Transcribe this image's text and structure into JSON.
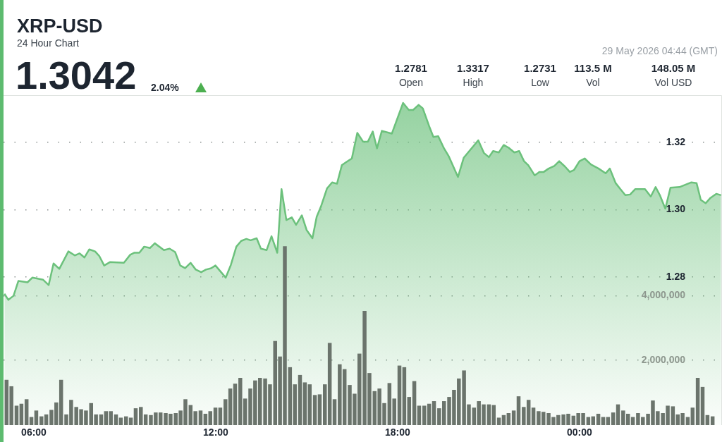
{
  "chart_data": {
    "type": "area",
    "title": "XRP-USD",
    "subtitle": "24 Hour Chart",
    "annotations": [
      "1.3042",
      "2.04%",
      "29 May 2026 04:44 (GMT)",
      "1.2781",
      "Open",
      "1.3317",
      "High",
      "1.2731",
      "Low",
      "113.5 M",
      "Vol",
      "148.05 M",
      "Vol USD"
    ],
    "xlim": [
      5.0,
      28.7
    ],
    "xticks": [
      {
        "value": 6,
        "label": "06:00"
      },
      {
        "value": 12,
        "label": "12:00"
      },
      {
        "value": 18,
        "label": "18:00"
      },
      {
        "value": 24,
        "label": "00:00"
      }
    ],
    "ylim": [
      1.236,
      1.334
    ],
    "yticks": [
      1.28,
      {
        "value": 1.3,
        "label": "1.30"
      },
      1.32
    ],
    "y2lim": [
      0,
      10200000
    ],
    "y2ticks": [
      {
        "value": 2000000,
        "label": "2,000,000"
      },
      {
        "value": 4000000,
        "label": "4,000,000"
      }
    ],
    "grid": "y",
    "legend": false,
    "series": [
      {
        "color": "#6cc17c",
        "x": [
          5.03,
          5.16,
          5.33,
          5.49,
          5.79,
          5.95,
          6.3,
          6.49,
          6.65,
          6.84,
          7.14,
          7.35,
          7.51,
          7.67,
          7.83,
          8.02,
          8.16,
          8.32,
          8.51,
          8.97,
          9.18,
          9.32,
          9.48,
          9.64,
          9.83,
          9.99,
          10.29,
          10.48,
          10.66,
          10.83,
          10.99,
          11.17,
          11.34,
          11.52,
          11.68,
          11.85,
          11.99,
          12.33,
          12.5,
          12.68,
          12.84,
          13.01,
          13.15,
          13.35,
          13.49,
          13.68,
          13.84,
          14.03,
          14.17,
          14.33,
          14.51,
          14.65,
          14.84,
          15.0,
          15.19,
          15.33,
          15.47,
          15.67,
          15.84,
          16.0,
          16.16,
          16.32,
          16.49,
          16.67,
          16.86,
          17.02,
          17.18,
          17.32,
          17.48,
          17.81,
          18.18,
          18.37,
          18.51,
          18.69,
          18.83,
          19.04,
          19.18,
          19.34,
          19.53,
          19.69,
          19.99,
          20.18,
          20.66,
          20.85,
          21.01,
          21.15,
          21.34,
          21.5,
          21.66,
          21.85,
          22.01,
          22.17,
          22.31,
          22.52,
          22.68,
          22.82,
          22.98,
          23.17,
          23.33,
          23.52,
          23.68,
          23.82,
          24.0,
          24.17,
          24.38,
          24.63,
          24.86,
          25.0,
          25.19,
          25.33,
          25.51,
          25.67,
          25.84,
          26.16,
          26.35,
          26.51,
          26.65,
          26.83,
          27.0,
          27.3,
          27.69,
          27.86,
          28.0,
          28.16,
          28.32,
          28.51,
          28.67
        ],
        "values": [
          1.275,
          1.2732,
          1.2744,
          1.2788,
          1.2784,
          1.2798,
          1.2792,
          1.2776,
          1.284,
          1.2824,
          1.2876,
          1.2864,
          1.287,
          1.2858,
          1.2882,
          1.2876,
          1.2862,
          1.2834,
          1.2844,
          1.2842,
          1.2866,
          1.2872,
          1.2872,
          1.289,
          1.2886,
          1.29,
          1.288,
          1.2884,
          1.2874,
          1.2834,
          1.2826,
          1.2842,
          1.2822,
          1.2814,
          1.2822,
          1.2826,
          1.2834,
          1.2798,
          1.2836,
          1.289,
          1.2907,
          1.2913,
          1.2909,
          1.2915,
          1.2884,
          1.288,
          1.2921,
          1.2872,
          1.3061,
          1.2969,
          1.2977,
          1.2955,
          1.2983,
          1.2939,
          1.2915,
          1.2979,
          1.3009,
          1.3063,
          1.3081,
          1.3077,
          1.3132,
          1.3142,
          1.3152,
          1.3228,
          1.3202,
          1.3202,
          1.3232,
          1.3182,
          1.3234,
          1.3226,
          1.3317,
          1.3296,
          1.3296,
          1.3311,
          1.3301,
          1.3248,
          1.3216,
          1.3218,
          1.3182,
          1.3158,
          1.3097,
          1.3154,
          1.3206,
          1.3168,
          1.3156,
          1.3174,
          1.317,
          1.3192,
          1.3184,
          1.317,
          1.3174,
          1.3144,
          1.3132,
          1.3102,
          1.3112,
          1.3112,
          1.3122,
          1.313,
          1.3144,
          1.3128,
          1.3112,
          1.3118,
          1.3144,
          1.3152,
          1.3134,
          1.3122,
          1.3108,
          1.3122,
          1.3079,
          1.3063,
          1.3043,
          1.3045,
          1.3061,
          1.3061,
          1.3039,
          1.3067,
          1.3043,
          1.3003,
          1.3065,
          1.3067,
          1.3081,
          1.3079,
          1.3029,
          1.3019,
          1.3035,
          1.3047,
          1.3043
        ]
      },
      {
        "type": "bar",
        "axis": "y2",
        "color": "#6b746c",
        "x": [
          5.1,
          5.26,
          5.43,
          5.59,
          5.76,
          5.92,
          6.08,
          6.25,
          6.41,
          6.58,
          6.74,
          6.9,
          7.07,
          7.23,
          7.4,
          7.56,
          7.72,
          7.89,
          8.05,
          8.22,
          8.38,
          8.54,
          8.71,
          8.87,
          9.04,
          9.2,
          9.36,
          9.53,
          9.69,
          9.86,
          10.02,
          10.18,
          10.35,
          10.51,
          10.68,
          10.84,
          11.0,
          11.17,
          11.33,
          11.5,
          11.66,
          11.82,
          11.99,
          12.15,
          12.32,
          12.48,
          12.64,
          12.81,
          12.97,
          13.14,
          13.3,
          13.46,
          13.63,
          13.79,
          13.96,
          14.12,
          14.28,
          14.45,
          14.61,
          14.78,
          14.94,
          15.1,
          15.27,
          15.43,
          15.6,
          15.76,
          15.92,
          16.09,
          16.25,
          16.42,
          16.58,
          16.74,
          16.91,
          17.07,
          17.24,
          17.4,
          17.56,
          17.73,
          17.89,
          18.06,
          18.22,
          18.38,
          18.55,
          18.71,
          18.88,
          19.04,
          19.2,
          19.37,
          19.53,
          19.7,
          19.86,
          20.02,
          20.19,
          20.35,
          20.52,
          20.68,
          20.84,
          21.01,
          21.17,
          21.34,
          21.5,
          21.66,
          21.83,
          21.99,
          22.16,
          22.32,
          22.48,
          22.65,
          22.81,
          22.98,
          23.14,
          23.3,
          23.47,
          23.63,
          23.8,
          23.96,
          24.12,
          24.29,
          24.45,
          24.62,
          24.78,
          24.94,
          25.11,
          25.27,
          25.44,
          25.6,
          25.76,
          25.93,
          26.09,
          26.26,
          26.42,
          26.58,
          26.75,
          26.91,
          27.08,
          27.24,
          27.4,
          27.57,
          27.73,
          27.9,
          28.06,
          28.22,
          28.39
        ],
        "values": [
          1400000,
          1200000,
          600000,
          660000,
          800000,
          250000,
          450000,
          270000,
          330000,
          470000,
          700000,
          1400000,
          330000,
          780000,
          560000,
          490000,
          450000,
          680000,
          330000,
          330000,
          430000,
          430000,
          330000,
          230000,
          270000,
          230000,
          520000,
          560000,
          330000,
          310000,
          390000,
          390000,
          370000,
          350000,
          370000,
          450000,
          800000,
          620000,
          430000,
          450000,
          350000,
          430000,
          540000,
          540000,
          800000,
          1130000,
          1280000,
          1460000,
          820000,
          1130000,
          1380000,
          1460000,
          1440000,
          1260000,
          2600000,
          2120000,
          5530000,
          1790000,
          1260000,
          1550000,
          1320000,
          1260000,
          930000,
          950000,
          1260000,
          2540000,
          800000,
          1880000,
          1730000,
          1240000,
          970000,
          2210000,
          3530000,
          1610000,
          1050000,
          1130000,
          680000,
          1300000,
          820000,
          1840000,
          1790000,
          870000,
          1360000,
          600000,
          600000,
          660000,
          740000,
          520000,
          740000,
          870000,
          1090000,
          1440000,
          1690000,
          640000,
          540000,
          740000,
          640000,
          640000,
          620000,
          230000,
          310000,
          370000,
          450000,
          890000,
          560000,
          780000,
          540000,
          430000,
          410000,
          370000,
          250000,
          310000,
          330000,
          350000,
          290000,
          370000,
          370000,
          250000,
          270000,
          350000,
          250000,
          250000,
          390000,
          640000,
          450000,
          350000,
          250000,
          370000,
          250000,
          350000,
          760000,
          430000,
          370000,
          600000,
          580000,
          330000,
          370000,
          250000,
          540000,
          1460000,
          1180000,
          310000,
          270000
        ]
      }
    ]
  }
}
